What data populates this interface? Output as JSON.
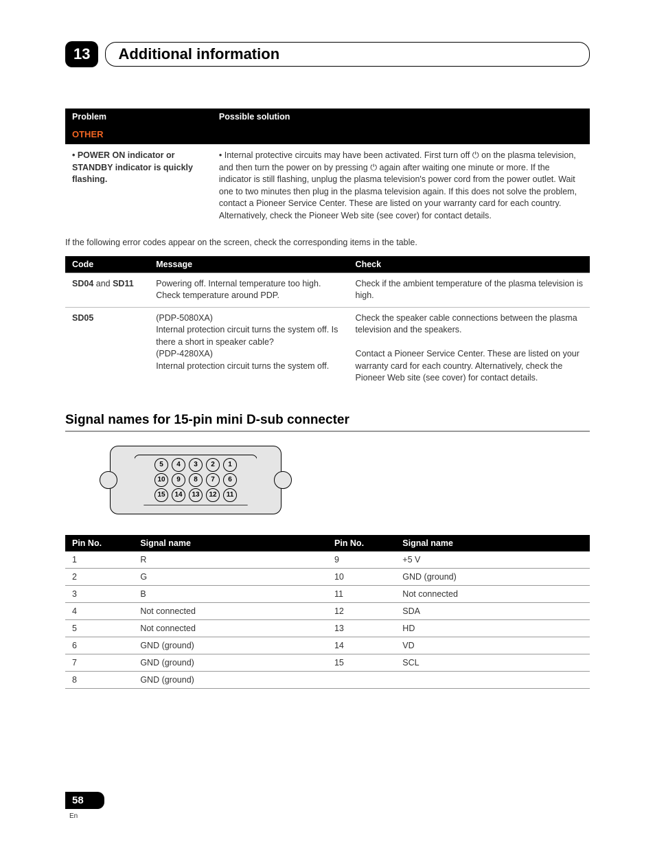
{
  "chapter": {
    "number": "13",
    "title": "Additional information"
  },
  "table1": {
    "headers": [
      "Problem",
      "Possible solution"
    ],
    "subhead": "OTHER",
    "row": {
      "problem": "• POWER ON indicator or STANDBY indicator is quickly flashing.",
      "solution": "• Internal protective circuits may have been activated. First turn off ⏻ on the plasma television, and then turn the power on by pressing ⏻ again after waiting one minute or more. If the indicator is still flashing, unplug the plasma television's power cord from the power outlet. Wait one to two minutes then plug in the plasma television again. If this does not solve the problem, contact a Pioneer Service Center. These are listed on your warranty card for each country. Alternatively, check the Pioneer Web site (see cover) for contact details."
    }
  },
  "intro": "If the following error codes appear on the screen, check the corresponding items in the table.",
  "table2": {
    "headers": [
      "Code",
      "Message",
      "Check"
    ],
    "rows": [
      {
        "code_html": "SD04 and SD11",
        "code_parts": {
          "a": "SD04",
          "mid": " and ",
          "b": "SD11"
        },
        "message": "Powering off. Internal temperature too high. Check temperature around PDP.",
        "check": "Check if the ambient temperature of the plasma television is high."
      },
      {
        "code": "SD05",
        "message": "(PDP-5080XA)\nInternal protection circuit turns the system off. Is there a short in speaker cable?\n(PDP-4280XA)\nInternal protection circuit turns the system off.",
        "check": "Check the speaker cable connections between the plasma television and the speakers.\n\nContact a Pioneer Service Center. These are listed on your warranty card for each country. Alternatively, check the Pioneer Web site (see cover) for contact details."
      }
    ]
  },
  "section2": {
    "title": "Signal names for 15-pin mini D-sub connecter"
  },
  "connector": {
    "row1": [
      "5",
      "4",
      "3",
      "2",
      "1"
    ],
    "row2": [
      "10",
      "9",
      "8",
      "7",
      "6"
    ],
    "row3": [
      "15",
      "14",
      "13",
      "12",
      "11"
    ]
  },
  "table3": {
    "headers": [
      "Pin No.",
      "Signal name",
      "Pin No.",
      "Signal name"
    ],
    "rows": [
      [
        "1",
        "R",
        "9",
        "+5 V"
      ],
      [
        "2",
        "G",
        "10",
        "GND (ground)"
      ],
      [
        "3",
        "B",
        "11",
        "Not connected"
      ],
      [
        "4",
        "Not connected",
        "12",
        "SDA"
      ],
      [
        "5",
        "Not connected",
        "13",
        "HD"
      ],
      [
        "6",
        "GND (ground)",
        "14",
        "VD"
      ],
      [
        "7",
        "GND (ground)",
        "15",
        "SCL"
      ],
      [
        "8",
        "GND (ground)",
        "",
        ""
      ]
    ]
  },
  "footer": {
    "page": "58",
    "lang": "En"
  }
}
